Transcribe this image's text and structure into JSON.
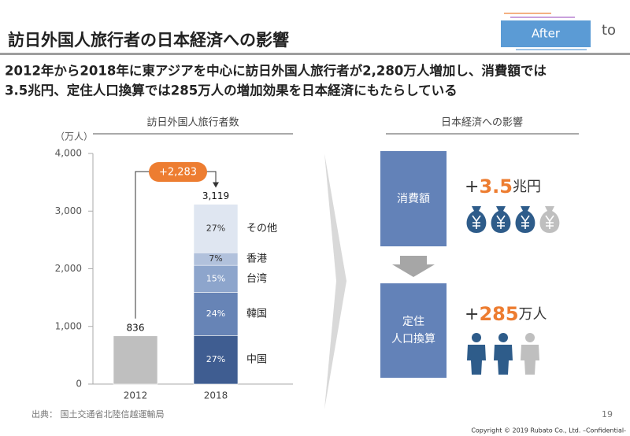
{
  "logo": {
    "badge": "After",
    "text": "to"
  },
  "title": "訪日外国人旅行者の日本経済への影響",
  "subtitle": [
    "2012年から2018年に東アジアを中心に訪日外国人旅行者が2,280万人増加し、消費額では",
    "3.5兆円、定住人口換算では285万人の増加効果を日本経済にもたらしている"
  ],
  "chart_data": {
    "type": "bar",
    "stacked": true,
    "title": "訪日外国人旅行者数",
    "y_label": "（万人）",
    "categories": [
      "2012",
      "2018"
    ],
    "series": [
      {
        "color": "#bfbfbf",
        "values": [
          836,
          null
        ]
      },
      {
        "name": "中国",
        "color": "#3f5d91",
        "values": [
          null,
          842
        ],
        "share_label": "27%"
      },
      {
        "name": "韓国",
        "color": "#6784b6",
        "values": [
          null,
          749
        ],
        "share_label": "24%"
      },
      {
        "name": "台湾",
        "color": "#8da5cc",
        "values": [
          null,
          468
        ],
        "share_label": "15%"
      },
      {
        "name": "香港",
        "color": "#b1c1dc",
        "values": [
          null,
          218
        ],
        "share_label": "7%"
      },
      {
        "name": "その他",
        "color": "#dfe6f1",
        "values": [
          null,
          842
        ],
        "share_label": "27%"
      }
    ],
    "totals": [
      836,
      {
        "value": 3119,
        "label": "3,119"
      }
    ],
    "annotation": "+2,283",
    "ylim": [
      0,
      4000
    ],
    "yticks": [
      0,
      {
        "value": 1000,
        "label": "1,000"
      },
      {
        "value": 2000,
        "label": "2,000"
      },
      {
        "value": 3000,
        "label": "3,000"
      },
      {
        "value": 4000,
        "label": "4,000"
      }
    ]
  },
  "impact": {
    "title": "日本経済への影響",
    "items": [
      {
        "label": [
          "消費額"
        ],
        "prefix": "+",
        "amount": 3.5,
        "unit": "兆円"
      },
      {
        "label": [
          "定住",
          "人口換算"
        ],
        "prefix": "+",
        "amount": 285,
        "unit": "万人"
      }
    ]
  },
  "source": "出典： 国土交通省北陸信越運輸局",
  "page": "19",
  "copyright": "Copyright © 2019 Rubato Co., Ltd. –Confidential-"
}
